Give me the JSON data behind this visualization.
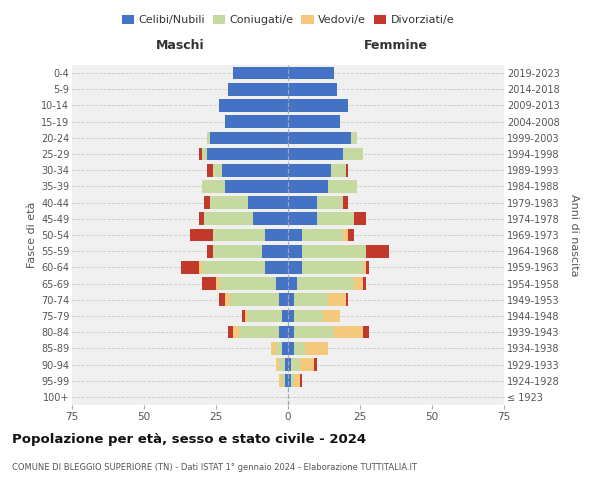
{
  "age_groups": [
    "100+",
    "95-99",
    "90-94",
    "85-89",
    "80-84",
    "75-79",
    "70-74",
    "65-69",
    "60-64",
    "55-59",
    "50-54",
    "45-49",
    "40-44",
    "35-39",
    "30-34",
    "25-29",
    "20-24",
    "15-19",
    "10-14",
    "5-9",
    "0-4"
  ],
  "birth_years": [
    "≤ 1923",
    "1924-1928",
    "1929-1933",
    "1934-1938",
    "1939-1943",
    "1944-1948",
    "1949-1953",
    "1954-1958",
    "1959-1963",
    "1964-1968",
    "1969-1973",
    "1974-1978",
    "1979-1983",
    "1984-1988",
    "1989-1993",
    "1994-1998",
    "1999-2003",
    "2004-2008",
    "2009-2013",
    "2014-2018",
    "2019-2023"
  ],
  "maschi": {
    "celibi": [
      0,
      1,
      1,
      2,
      3,
      2,
      3,
      4,
      8,
      9,
      8,
      12,
      14,
      22,
      23,
      28,
      27,
      22,
      24,
      21,
      19
    ],
    "coniugati": [
      0,
      1,
      2,
      2,
      14,
      12,
      17,
      20,
      22,
      17,
      18,
      17,
      13,
      8,
      3,
      2,
      1,
      0,
      0,
      0,
      0
    ],
    "vedovi": [
      0,
      1,
      1,
      2,
      2,
      1,
      2,
      1,
      1,
      0,
      0,
      0,
      0,
      0,
      0,
      0,
      0,
      0,
      0,
      0,
      0
    ],
    "divorziati": [
      0,
      0,
      0,
      0,
      2,
      1,
      2,
      5,
      6,
      2,
      8,
      2,
      2,
      0,
      2,
      1,
      0,
      0,
      0,
      0,
      0
    ]
  },
  "femmine": {
    "nubili": [
      0,
      1,
      1,
      2,
      2,
      2,
      2,
      3,
      5,
      5,
      5,
      10,
      10,
      14,
      15,
      19,
      22,
      18,
      21,
      17,
      16
    ],
    "coniugate": [
      0,
      1,
      3,
      4,
      14,
      10,
      12,
      20,
      21,
      22,
      14,
      13,
      9,
      10,
      5,
      7,
      2,
      0,
      0,
      0,
      0
    ],
    "vedove": [
      0,
      2,
      5,
      8,
      10,
      6,
      6,
      3,
      1,
      0,
      2,
      0,
      0,
      0,
      0,
      0,
      0,
      0,
      0,
      0,
      0
    ],
    "divorziate": [
      0,
      1,
      1,
      0,
      2,
      0,
      1,
      1,
      1,
      8,
      2,
      4,
      2,
      0,
      1,
      0,
      0,
      0,
      0,
      0,
      0
    ]
  },
  "colors": {
    "celibi": "#4472c4",
    "coniugati": "#c5d9a0",
    "vedovi": "#f5c97c",
    "divorziati": "#c0392b"
  },
  "xlim": 75,
  "title": "Popolazione per età, sesso e stato civile - 2024",
  "subtitle": "COMUNE DI BLEGGIO SUPERIORE (TN) - Dati ISTAT 1° gennaio 2024 - Elaborazione TUTTITALIA.IT",
  "ylabel_left": "Fasce di età",
  "ylabel_right": "Anni di nascita",
  "xlabel_maschi": "Maschi",
  "xlabel_femmine": "Femmine",
  "legend_labels": [
    "Celibi/Nubili",
    "Coniugati/e",
    "Vedovi/e",
    "Divorziati/e"
  ],
  "bg_color": "#f0f0f0",
  "grid_color": "#cccccc"
}
